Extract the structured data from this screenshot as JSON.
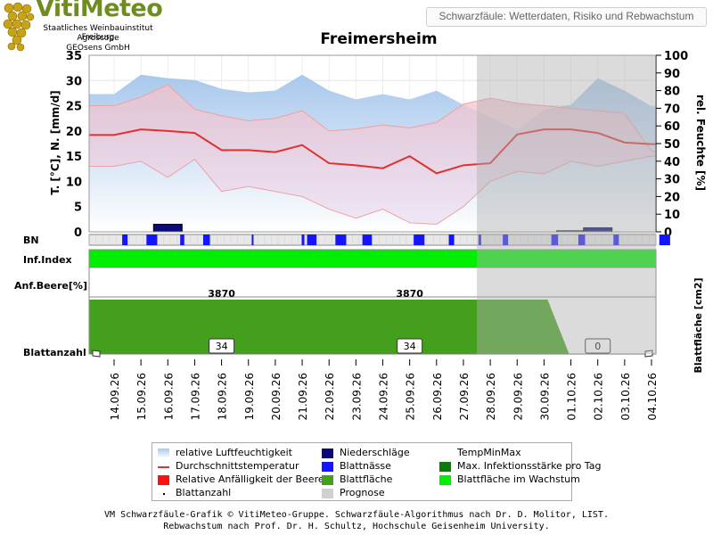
{
  "header": {
    "logo_title": "VitiMeteo",
    "logo_lines": [
      "Staatliches Weinbauinstitut Freiburg",
      "Agroscope",
      "GEOsens GmbH"
    ],
    "subtitle": "Schwarzfäule: Wetterdaten, Risiko und Rebwachstum",
    "title": "Freimersheim"
  },
  "chart_data": {
    "type": "line",
    "title": "Freimersheim",
    "x": [
      "14.09.26",
      "15.09.26",
      "16.09.26",
      "17.09.26",
      "18.09.26",
      "19.09.26",
      "20.09.26",
      "21.09.26",
      "22.09.26",
      "23.09.26",
      "24.09.26",
      "25.09.26",
      "26.09.26",
      "27.09.26",
      "28.09.26",
      "29.09.26",
      "30.09.26",
      "01.10.26",
      "02.10.26",
      "03.10.26",
      "04.10.26"
    ],
    "ylabel_left": "T. [°C], N. [mm/d]",
    "ylabel_right": "rel. Feuchte [%]",
    "ylim_left": [
      0,
      35
    ],
    "yticks_left": [
      0,
      5,
      10,
      15,
      20,
      25,
      30,
      35
    ],
    "ylim_right": [
      0,
      100
    ],
    "yticks_right": [
      0,
      10,
      20,
      30,
      40,
      50,
      60,
      70,
      80,
      90,
      100
    ],
    "forecast_from_index": 13.5,
    "series": [
      {
        "name": "relative Luftfeuchtigkeit",
        "axis": "right",
        "color": "#a8c8ec",
        "values": [
          78,
          89,
          87,
          86,
          81,
          79,
          80,
          89,
          80,
          75,
          78,
          75,
          80,
          72,
          65,
          58,
          69,
          72,
          87,
          80,
          71
        ]
      },
      {
        "name": "Durchschnittstemperatur",
        "axis": "left",
        "color": "#e03030",
        "values": [
          19.2,
          20.3,
          20.0,
          19.6,
          16.2,
          16.2,
          15.8,
          17.2,
          13.6,
          13.2,
          12.6,
          15.0,
          11.6,
          13.2,
          13.6,
          19.3,
          20.3,
          20.3,
          19.6,
          17.7,
          17.4
        ]
      },
      {
        "name": "TempMin",
        "axis": "left",
        "color": "#f0a0a0",
        "values": [
          13.0,
          14.0,
          10.8,
          14.4,
          8.0,
          9.0,
          8.0,
          7.0,
          4.5,
          2.7,
          4.5,
          1.8,
          1.5,
          5.0,
          10.0,
          12.0,
          11.5,
          14.0,
          13.0,
          14.0,
          15.0
        ]
      },
      {
        "name": "TempMax",
        "axis": "left",
        "color": "#f0a0a0",
        "values": [
          25.0,
          26.7,
          29.2,
          24.3,
          23.0,
          22.0,
          22.5,
          24.0,
          20.0,
          20.4,
          21.2,
          20.6,
          21.7,
          25.3,
          26.5,
          25.5,
          25.0,
          24.5,
          24.0,
          23.5,
          16.0
        ]
      },
      {
        "name": "Niederschläge",
        "axis": "left",
        "color": "#0a0a78",
        "values": [
          0,
          0,
          1.5,
          0,
          0,
          0,
          0,
          0,
          0,
          0,
          0,
          0,
          0,
          0,
          0,
          0,
          0,
          0.2,
          0.8,
          0,
          0
        ]
      }
    ],
    "bn_label": "BN",
    "blattnaesse_segments": [
      [
        14.3,
        14.5
      ],
      [
        15.2,
        15.6
      ],
      [
        16.45,
        16.6
      ],
      [
        17.3,
        17.55
      ],
      [
        19.1,
        19.15
      ],
      [
        20.95,
        21.05
      ],
      [
        21.15,
        21.5
      ],
      [
        22.2,
        22.6
      ],
      [
        23.2,
        23.55
      ],
      [
        25.1,
        25.5
      ],
      [
        26.4,
        26.6
      ],
      [
        27.5,
        27.6
      ],
      [
        28.4,
        28.6
      ],
      [
        30.2,
        30.45
      ],
      [
        31.2,
        31.45
      ],
      [
        32.5,
        32.7
      ],
      [
        34.2,
        34.6
      ],
      [
        36.4,
        36.6
      ],
      [
        36.7,
        36.9
      ],
      [
        38.1,
        38.4
      ],
      [
        40.2,
        40.4
      ],
      [
        42.1,
        42.4
      ],
      [
        44.1,
        44.3
      ],
      [
        44.5,
        44.7
      ]
    ],
    "infindex_label": "Inf.Index",
    "anfaelligkeit_label": "Anf.Beere[%]",
    "blattflaeche_label": "Blattfläche [cm2]",
    "blattflaeche_annotations": [
      {
        "x_index": 4,
        "text": "3870"
      },
      {
        "x_index": 11,
        "text": "3870"
      }
    ],
    "blattanzahl_label": "Blattanzahl",
    "blattanzahl_boxes": [
      {
        "x_index": 4,
        "value": "34"
      },
      {
        "x_index": 11,
        "value": "34"
      },
      {
        "x_index": 18,
        "value": "0"
      }
    ]
  },
  "legend": [
    {
      "label": "relative Luftfeuchtigkeit",
      "swatch": "gradient",
      "color": "#a8c8ec"
    },
    {
      "label": "Niederschläge",
      "swatch": "box",
      "color": "#0a0a78"
    },
    {
      "label": "TempMinMax",
      "swatch": "none",
      "color": "#f0a0a0"
    },
    {
      "label": "Durchschnittstemperatur",
      "swatch": "line",
      "color": "#e03030"
    },
    {
      "label": "Blattnässe",
      "swatch": "box",
      "color": "#1414ff"
    },
    {
      "label": "Max. Infektionsstärke pro Tag",
      "swatch": "box",
      "color": "#0b7a0b"
    },
    {
      "label": "Relative Anfälligkeit der Beere",
      "swatch": "box",
      "color": "#ff1010"
    },
    {
      "label": "Blattfläche",
      "swatch": "box",
      "color": "#44a01c"
    },
    {
      "label": "Blattfläche im Wachstum",
      "swatch": "box",
      "color": "#00ee00"
    },
    {
      "label": "Blattanzahl",
      "swatch": "dot",
      "color": "#000000"
    },
    {
      "label": "Prognose",
      "swatch": "box",
      "color": "#d0d0d0"
    }
  ],
  "footer": {
    "line1": "VM Schwarzfäule-Grafik © VitiMeteo-Gruppe. Schwarzfäule-Algorithmus nach Dr. D. Molitor, LIST.",
    "line2": "Rebwachstum nach Prof. Dr. H. Schultz, Hochschule Geisenheim University."
  }
}
